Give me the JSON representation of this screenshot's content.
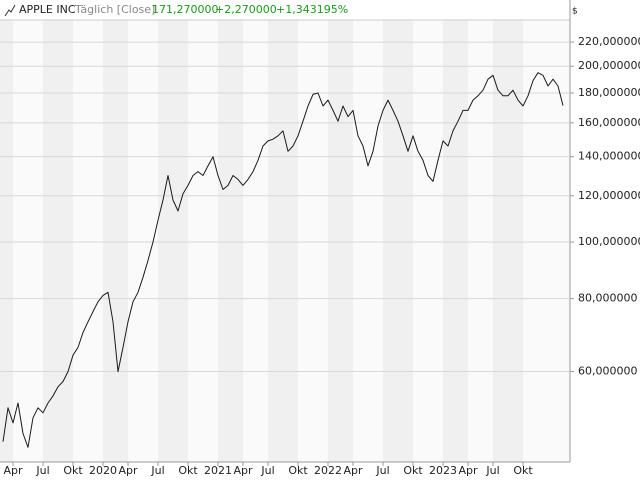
{
  "chart_data": {
    "type": "line",
    "title": "APPLE INC",
    "subtitle": "Täglich [Close]",
    "last_value": "171,270000",
    "change": "+2,270000",
    "change_percent": "+1,343195%",
    "y_unit": "$",
    "log_scale": true,
    "grid": true,
    "color": "#1a1a1a",
    "categories": [
      null,
      null,
      "Apr",
      null,
      null,
      null,
      null,
      null,
      "Jul",
      null,
      null,
      null,
      null,
      null,
      "Okt",
      null,
      null,
      null,
      null,
      null,
      "2020",
      null,
      null,
      null,
      null,
      "Apr",
      null,
      null,
      null,
      null,
      null,
      "Jul",
      null,
      null,
      null,
      null,
      null,
      "Okt",
      null,
      null,
      null,
      null,
      null,
      "2021",
      null,
      null,
      null,
      null,
      "Apr",
      null,
      null,
      null,
      null,
      "Jul",
      null,
      null,
      null,
      null,
      null,
      "Okt",
      null,
      null,
      null,
      null,
      null,
      "2022",
      null,
      null,
      null,
      null,
      "Apr",
      null,
      null,
      null,
      null,
      null,
      "Jul",
      null,
      null,
      null,
      null,
      null,
      "Okt",
      null,
      null,
      null,
      null,
      null,
      "2023",
      null,
      null,
      null,
      null,
      "Apr",
      null,
      null,
      null,
      null,
      "Jul",
      null,
      null,
      null,
      null,
      null,
      "Okt",
      null,
      null,
      null,
      null,
      null,
      null,
      null,
      null
    ],
    "series": [
      {
        "name": "APPLE INC",
        "color": "#1a1a1a",
        "values": [
          45.5,
          52,
          49,
          53,
          47,
          44.5,
          50,
          52,
          51,
          53,
          54.5,
          56.5,
          57.7,
          60,
          64,
          66,
          70,
          73,
          76,
          79,
          81,
          82,
          73,
          60,
          66,
          73,
          79,
          82,
          87,
          93,
          100,
          109,
          118,
          130,
          118,
          113,
          121,
          125,
          130,
          132,
          130,
          135,
          140,
          130,
          123,
          125,
          130,
          128,
          125,
          128,
          132,
          138,
          146,
          149,
          150,
          152,
          155,
          143,
          146,
          152,
          161,
          171,
          179,
          180,
          171,
          175,
          168,
          161,
          171,
          164,
          168,
          152,
          146,
          135,
          143,
          158,
          168,
          175,
          168,
          161,
          152,
          143,
          152,
          143,
          138,
          130,
          127,
          138,
          149,
          146,
          155,
          161,
          168,
          168,
          175,
          178,
          182,
          190,
          193,
          182,
          178,
          178,
          182,
          175,
          171,
          178,
          189,
          195,
          193,
          185,
          190,
          185,
          171.27
        ]
      }
    ],
    "ylim": [
      42,
      240
    ],
    "yticks": [
      {
        "value": 60,
        "label": "60,000000"
      },
      {
        "value": 80,
        "label": "80,000000"
      },
      {
        "value": 100,
        "label": "100,000000"
      },
      {
        "value": 120,
        "label": "120,000000"
      },
      {
        "value": 140,
        "label": "140,000000"
      },
      {
        "value": 160,
        "label": "160,000000"
      },
      {
        "value": 180,
        "label": "180,000000"
      },
      {
        "value": 200,
        "label": "200,000000"
      },
      {
        "value": 220,
        "label": "220,000000"
      }
    ]
  }
}
